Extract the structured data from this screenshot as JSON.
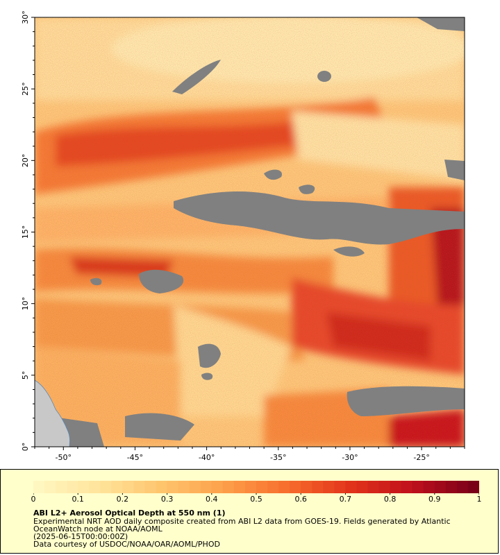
{
  "map": {
    "lon_ticks": [
      "-50°",
      "-45°",
      "-40°",
      "-35°",
      "-30°",
      "-25°"
    ],
    "lat_ticks": [
      "0°",
      "5°",
      "10°",
      "15°",
      "20°",
      "25°",
      "30°"
    ],
    "lon_range": [
      -52,
      -22
    ],
    "lat_range": [
      0,
      30
    ],
    "colors": {
      "nodata": "#808080",
      "land": "#c8c8c8",
      "scale": [
        "#fff7c0",
        "#ffe39a",
        "#fec46c",
        "#fd9f4a",
        "#f76d2c",
        "#e2341a",
        "#c0101c",
        "#7a0018"
      ]
    }
  },
  "legend": {
    "ticks": [
      "0",
      "0.1",
      "0.2",
      "0.3",
      "0.4",
      "0.5",
      "0.6",
      "0.7",
      "0.8",
      "0.9",
      "1"
    ],
    "title": "ABI L2+ Aerosol Optical Depth at 550 nm (1)",
    "line1": "Experimental NRT AOD daily composite created from ABI L2 data from GOES-19. Fields generated by Atlantic",
    "line2": "OceanWatch node at NOAA/AOML",
    "line3": "(2025-06-15T00:00:00Z)",
    "line4": "Data courtesy of USDOC/NOAA/OAR/AOML/PHOD"
  }
}
